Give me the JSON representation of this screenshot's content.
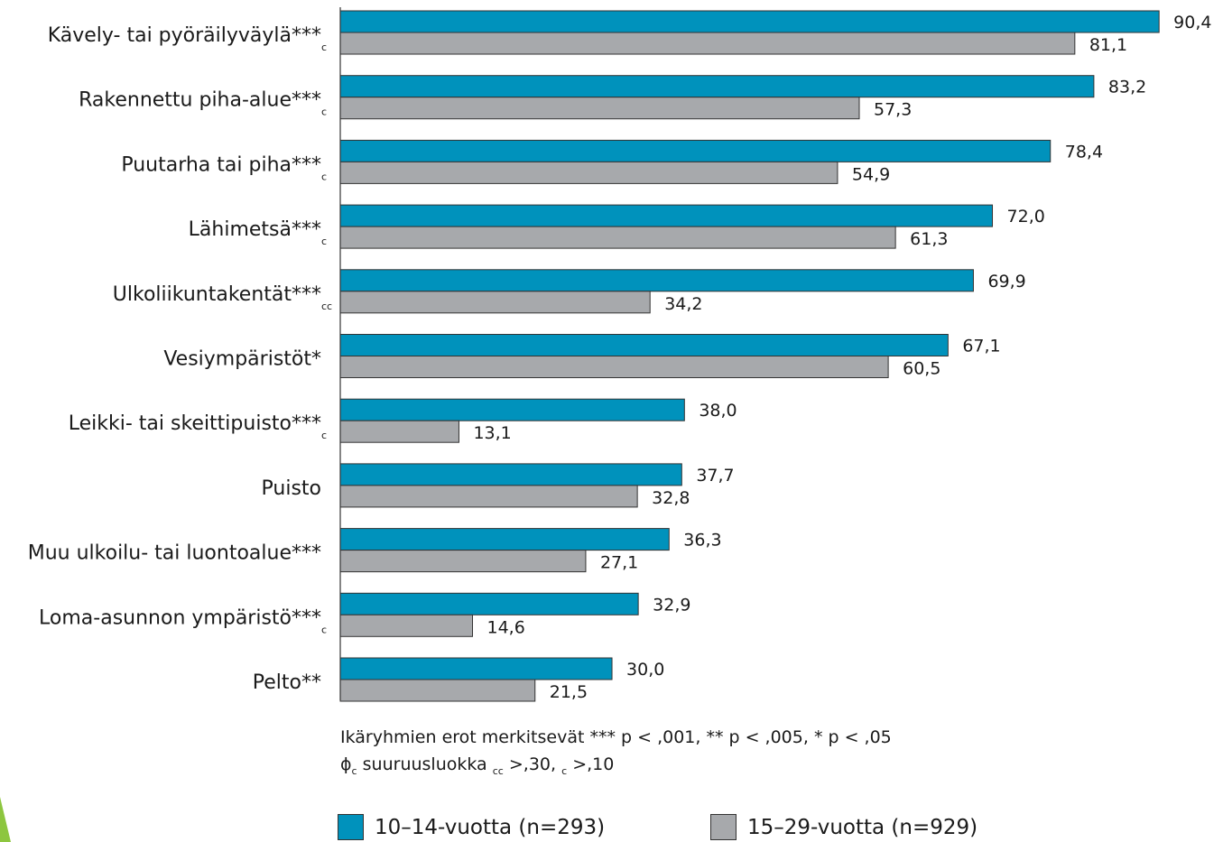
{
  "chart_data": {
    "type": "bar",
    "orientation": "horizontal",
    "categories": [
      {
        "label": "Kävely- tai pyöräilyväylä***",
        "sub": "c"
      },
      {
        "label": "Rakennettu piha-alue***",
        "sub": "c"
      },
      {
        "label": "Puutarha tai piha***",
        "sub": "c"
      },
      {
        "label": "Lähimetsä***",
        "sub": "c"
      },
      {
        "label": "Ulkoliikuntakentät***",
        "sub": "cc"
      },
      {
        "label": "Vesiympäristöt*",
        "sub": ""
      },
      {
        "label": "Leikki- tai skeittipuisto***",
        "sub": "c"
      },
      {
        "label": "Puisto",
        "sub": ""
      },
      {
        "label": "Muu ulkoilu- tai luontoalue***",
        "sub": ""
      },
      {
        "label": "Loma-asunnon ympäristö***",
        "sub": "c"
      },
      {
        "label": "Pelto**",
        "sub": ""
      }
    ],
    "series": [
      {
        "name": "10–14-vuotta (n=293)",
        "color": "#0092bc",
        "values": [
          90.4,
          83.2,
          78.4,
          72.0,
          69.9,
          67.1,
          38.0,
          37.7,
          36.3,
          32.9,
          30.0
        ],
        "labels": [
          "90,4",
          "83,2",
          "78,4",
          "72,0",
          "69,9",
          "67,1",
          "38,0",
          "37,7",
          "36,3",
          "32,9",
          "30,0"
        ]
      },
      {
        "name": "15–29-vuotta (n=929)",
        "color": "#a7a9ac",
        "values": [
          81.1,
          57.3,
          54.9,
          61.3,
          34.2,
          60.5,
          13.1,
          32.8,
          27.1,
          14.6,
          21.5
        ],
        "labels": [
          "81,1",
          "57,3",
          "54,9",
          "61,3",
          "34,2",
          "60,5",
          "13,1",
          "32,8",
          "27,1",
          "14,6",
          "21,5"
        ]
      }
    ],
    "xlim": [
      0,
      100
    ],
    "grid": false,
    "legend_position": "bottom"
  },
  "notes": {
    "line1": "Ikäryhmien erot merkitsevät *** p < ,001, ** p < ,005, * p < ,05",
    "line2_phi": "ϕ",
    "line2_phi_sub": "c",
    "line2_text_a": " suuruusluokka ",
    "line2_cc": "cc",
    "line2_text_b": " >,30, ",
    "line2_c": "c",
    "line2_text_c": " >,10"
  },
  "legend": {
    "item1": "10–14-vuotta (n=293)",
    "item2": "15–29-vuotta (n=929)"
  },
  "colors": {
    "accent": "#8dc63f"
  }
}
